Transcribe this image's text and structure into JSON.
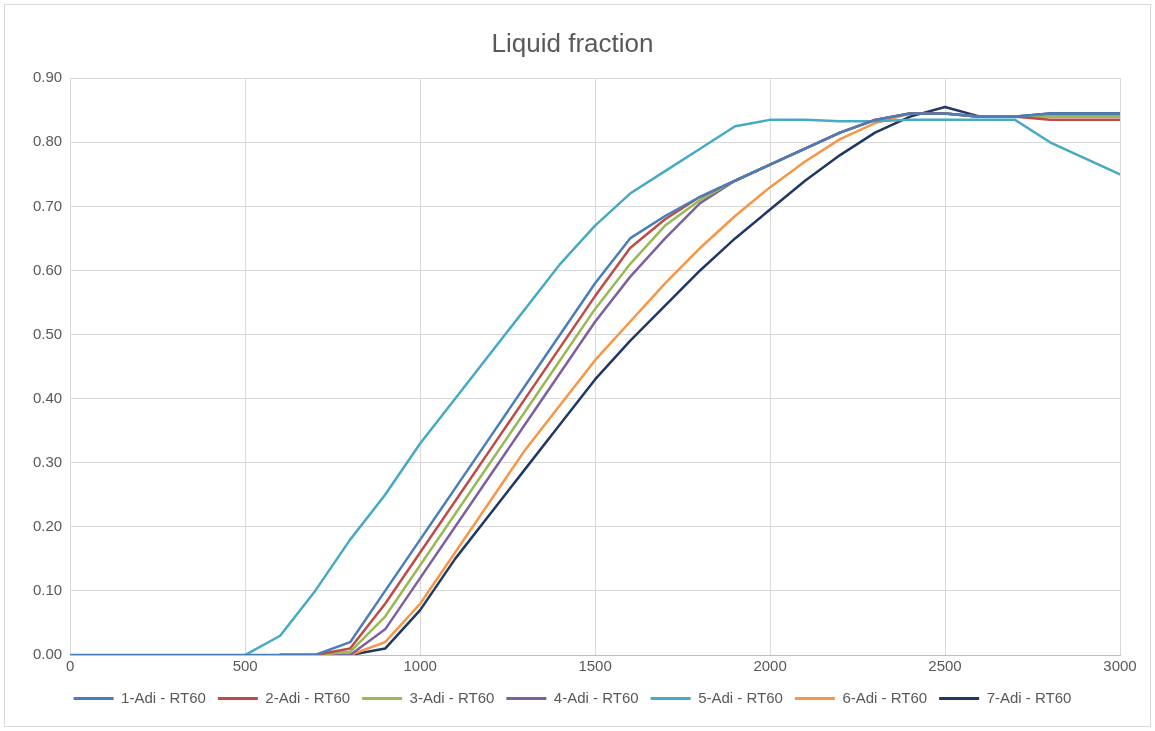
{
  "chart_data": {
    "type": "line",
    "title": "Liquid fraction",
    "x": [
      0,
      100,
      200,
      300,
      400,
      500,
      600,
      700,
      800,
      900,
      1000,
      1100,
      1200,
      1300,
      1400,
      1500,
      1600,
      1700,
      1800,
      1900,
      2000,
      2100,
      2200,
      2300,
      2400,
      2500,
      2600,
      2700,
      2800,
      2900,
      3000
    ],
    "series": [
      {
        "name": "1-Adi - RT60",
        "color": "#4a7ebb",
        "values": [
          0,
          0,
          0,
          0,
          0,
          0,
          0,
          0,
          0.02,
          0.1,
          0.18,
          0.26,
          0.34,
          0.42,
          0.5,
          0.58,
          0.65,
          0.685,
          0.715,
          0.74,
          0.765,
          0.79,
          0.815,
          0.835,
          0.845,
          0.845,
          0.84,
          0.84,
          0.845,
          0.845,
          0.845
        ]
      },
      {
        "name": "2-Adi - RT60",
        "color": "#be4b48",
        "values": [
          null,
          null,
          null,
          null,
          null,
          null,
          0,
          0,
          0.01,
          0.08,
          0.16,
          0.24,
          0.32,
          0.4,
          0.48,
          0.56,
          0.635,
          0.68,
          0.715,
          0.74,
          0.765,
          0.79,
          0.815,
          0.835,
          0.845,
          0.845,
          0.84,
          0.84,
          0.835,
          0.835,
          0.835
        ]
      },
      {
        "name": "3-Adi - RT60",
        "color": "#98b954",
        "values": [
          null,
          null,
          null,
          null,
          null,
          null,
          0,
          0,
          0.005,
          0.06,
          0.14,
          0.22,
          0.3,
          0.38,
          0.46,
          0.54,
          0.61,
          0.67,
          0.71,
          0.74,
          0.765,
          0.79,
          0.815,
          0.835,
          0.845,
          0.845,
          0.84,
          0.84,
          0.84,
          0.84,
          0.84
        ]
      },
      {
        "name": "4-Adi - RT60",
        "color": "#7d60a0",
        "values": [
          null,
          null,
          null,
          null,
          null,
          null,
          0,
          0,
          0,
          0.04,
          0.12,
          0.2,
          0.28,
          0.36,
          0.44,
          0.52,
          0.59,
          0.65,
          0.705,
          0.74,
          0.765,
          0.79,
          0.815,
          0.835,
          0.845,
          0.845,
          0.84,
          0.84,
          0.84,
          0.84,
          0.84
        ]
      },
      {
        "name": "5-Adi - RT60",
        "color": "#46aac5",
        "values": [
          null,
          null,
          null,
          null,
          null,
          0,
          0.03,
          0.1,
          0.18,
          0.25,
          0.33,
          0.4,
          0.47,
          0.54,
          0.61,
          0.67,
          0.72,
          0.755,
          0.79,
          0.825,
          0.835,
          0.835,
          0.833,
          0.833,
          0.835,
          0.835,
          0.835,
          0.835,
          0.8,
          0.775,
          0.75
        ]
      },
      {
        "name": "6-Adi - RT60",
        "color": "#f79646",
        "values": [
          null,
          null,
          null,
          null,
          null,
          null,
          0,
          0,
          0,
          0.02,
          0.08,
          0.16,
          0.24,
          0.32,
          0.39,
          0.46,
          0.52,
          0.58,
          0.635,
          0.685,
          0.73,
          0.77,
          0.805,
          0.83,
          0.845,
          0.845,
          0.84,
          0.84,
          0.84,
          0.84,
          0.84
        ]
      },
      {
        "name": "7-Adi - RT60",
        "color": "#1f3864",
        "values": [
          null,
          null,
          null,
          null,
          null,
          null,
          0,
          0,
          0,
          0.01,
          0.07,
          0.15,
          0.22,
          0.29,
          0.36,
          0.43,
          0.49,
          0.545,
          0.6,
          0.65,
          0.695,
          0.74,
          0.78,
          0.815,
          0.84,
          0.855,
          0.84,
          0.84,
          0.845,
          0.845,
          0.845
        ]
      }
    ],
    "xlim": [
      0,
      3000
    ],
    "xticks": [
      0,
      500,
      1000,
      1500,
      2000,
      2500,
      3000
    ],
    "ylim": [
      0,
      0.9
    ],
    "yticks": [
      {
        "value": 0,
        "label": "0.00"
      },
      {
        "value": 0.1,
        "label": "0.10"
      },
      {
        "value": 0.2,
        "label": "0.20"
      },
      {
        "value": 0.3,
        "label": "0.30"
      },
      {
        "value": 0.4,
        "label": "0.40"
      },
      {
        "value": 0.5,
        "label": "0.50"
      },
      {
        "value": 0.6,
        "label": "0.60"
      },
      {
        "value": 0.7,
        "label": "0.70"
      },
      {
        "value": 0.8,
        "label": "0.80"
      },
      {
        "value": 0.9,
        "label": "0.90"
      }
    ],
    "grid": true,
    "legend": "bottom",
    "marker": "none",
    "line_style": "solid"
  }
}
